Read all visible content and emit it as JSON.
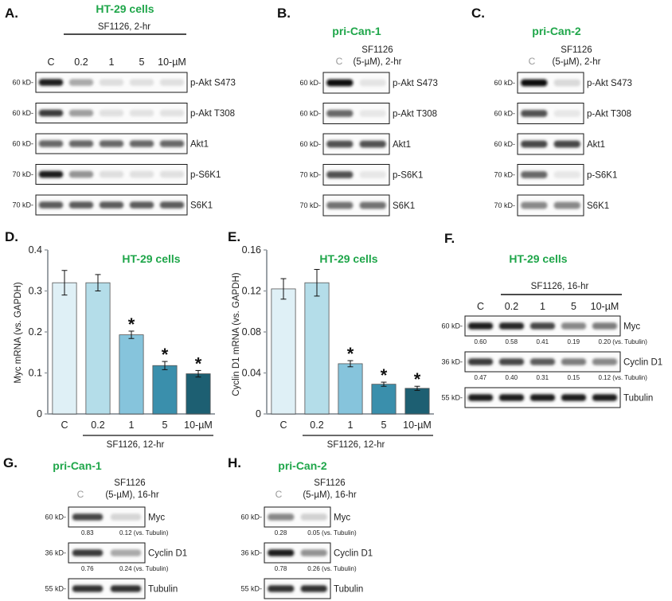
{
  "panels": {
    "A": {
      "letter": "A.",
      "title": "HT-29 cells",
      "treatment": "SF1126, 2-hr",
      "lanes": [
        "C",
        "0.2",
        "1",
        "5",
        "10-µM"
      ],
      "blots": [
        {
          "kd": "60 kD-",
          "protein": "p-Akt S473",
          "intensity": [
            0.95,
            0.3,
            0.06,
            0.05,
            0.05
          ]
        },
        {
          "kd": "60 kD-",
          "protein": "p-Akt T308",
          "intensity": [
            0.8,
            0.35,
            0.05,
            0.04,
            0.04
          ]
        },
        {
          "kd": "60 kD-",
          "protein": "Akt1",
          "intensity": [
            0.6,
            0.6,
            0.6,
            0.6,
            0.6
          ]
        },
        {
          "kd": "70 kD-",
          "protein": "p-S6K1",
          "intensity": [
            0.95,
            0.4,
            0.06,
            0.05,
            0.05
          ]
        },
        {
          "kd": "70 kD-",
          "protein": "S6K1",
          "intensity": [
            0.65,
            0.65,
            0.65,
            0.65,
            0.65
          ]
        }
      ]
    },
    "B": {
      "letter": "B.",
      "title": "pri-Can-1",
      "treatment_line1": "SF1126",
      "treatment_line2": "(5-µM), 2-hr",
      "lanes": [
        "C"
      ],
      "blots": [
        {
          "kd": "60 kD-",
          "protein": "p-Akt S473",
          "intensity": [
            1.0,
            0.03
          ]
        },
        {
          "kd": "60 kD-",
          "protein": "p-Akt T308",
          "intensity": [
            0.6,
            0.02
          ]
        },
        {
          "kd": "60 kD-",
          "protein": "Akt1",
          "intensity": [
            0.7,
            0.7
          ]
        },
        {
          "kd": "70 kD-",
          "protein": "p-S6K1",
          "intensity": [
            0.7,
            0.02
          ]
        },
        {
          "kd": "70 kD-",
          "protein": "S6K1",
          "intensity": [
            0.55,
            0.55
          ]
        }
      ]
    },
    "C": {
      "letter": "C.",
      "title": "pri-Can-2",
      "treatment_line1": "SF1126",
      "treatment_line2": "(5-µM), 2-hr",
      "lanes": [
        "C"
      ],
      "blots": [
        {
          "kd": "60 kD-",
          "protein": "p-Akt S473",
          "intensity": [
            1.0,
            0.08
          ]
        },
        {
          "kd": "60 kD-",
          "protein": "p-Akt T308",
          "intensity": [
            0.7,
            0.02
          ]
        },
        {
          "kd": "60 kD-",
          "protein": "Akt1",
          "intensity": [
            0.75,
            0.75
          ]
        },
        {
          "kd": "70 kD-",
          "protein": "p-S6K1",
          "intensity": [
            0.6,
            0.02
          ]
        },
        {
          "kd": "70 kD-",
          "protein": "S6K1",
          "intensity": [
            0.45,
            0.45
          ]
        }
      ]
    },
    "F": {
      "letter": "F.",
      "title": "HT-29 cells",
      "treatment": "SF1126, 16-hr",
      "lanes": [
        "C",
        "0.2",
        "1",
        "5",
        "10-µM"
      ],
      "blots": [
        {
          "kd": "60 kD-",
          "protein": "Myc",
          "intensity": [
            0.95,
            0.9,
            0.75,
            0.45,
            0.5
          ],
          "values": [
            "0.60",
            "0.58",
            "0.41",
            "0.19",
            "0.20 (vs. Tubulin)"
          ]
        },
        {
          "kd": "36 kD-",
          "protein": "Cyclin D1",
          "intensity": [
            0.8,
            0.75,
            0.65,
            0.5,
            0.45
          ],
          "values": [
            "0.47",
            "0.40",
            "0.31",
            "0.15",
            "0.12 (vs. Tubulin)"
          ]
        },
        {
          "kd": "55 kD-",
          "protein": "Tubulin",
          "intensity": [
            0.95,
            0.95,
            0.95,
            0.95,
            0.95
          ]
        }
      ]
    },
    "G": {
      "letter": "G.",
      "title": "pri-Can-1",
      "treatment_line1": "SF1126",
      "treatment_line2": "(5-µM), 16-hr",
      "lanes": [
        "C"
      ],
      "blots": [
        {
          "kd": "60 kD-",
          "protein": "Myc",
          "intensity": [
            0.75,
            0.1
          ],
          "values": [
            "0.83",
            "0.12 (vs. Tubulin)"
          ]
        },
        {
          "kd": "36 kD-",
          "protein": "Cyclin D1",
          "intensity": [
            0.8,
            0.3
          ],
          "values": [
            "0.76",
            "0.24 (vs. Tubulin)"
          ]
        },
        {
          "kd": "55 kD-",
          "protein": "Tubulin",
          "intensity": [
            0.85,
            0.85
          ]
        }
      ]
    },
    "H": {
      "letter": "H.",
      "title": "pri-Can-2",
      "treatment_line1": "SF1126",
      "treatment_line2": "(5-µM), 16-hr",
      "lanes": [
        "C"
      ],
      "blots": [
        {
          "kd": "60 kD-",
          "protein": "Myc",
          "intensity": [
            0.45,
            0.12
          ],
          "values": [
            "0.28",
            "0.05 (vs. Tubulin)"
          ]
        },
        {
          "kd": "36 kD-",
          "protein": "Cyclin D1",
          "intensity": [
            0.95,
            0.4
          ],
          "values": [
            "0.78",
            "0.26 (vs. Tubulin)"
          ]
        },
        {
          "kd": "55 kD-",
          "protein": "Tubulin",
          "intensity": [
            0.85,
            0.85
          ]
        }
      ]
    }
  },
  "colors": {
    "title_green": "#1fa64a",
    "bars": [
      "#dff0f6",
      "#b4dde9",
      "#86c4dc",
      "#3a8fac",
      "#1d5f72"
    ],
    "error": "#111111"
  },
  "chart_data": [
    {
      "type": "bar",
      "panel": "D.",
      "title": "HT-29 cells",
      "ylabel": "Myc mRNA (vs. GAPDH)",
      "xlabel": "SF1126, 12-hr",
      "categories": [
        "C",
        "0.2",
        "1",
        "5",
        "10-µM"
      ],
      "values": [
        0.32,
        0.32,
        0.193,
        0.118,
        0.098
      ],
      "errors": [
        0.03,
        0.02,
        0.009,
        0.01,
        0.008
      ],
      "significance": [
        "",
        "",
        "*",
        "*",
        "*"
      ],
      "ylim": [
        0,
        0.4
      ],
      "yticks": [
        "0",
        "0.1",
        "0.2",
        "0.3",
        "0.4"
      ]
    },
    {
      "type": "bar",
      "panel": "E.",
      "title": "HT-29 cells",
      "ylabel": "Cyclin D1 mRNA (vs. GAPDH)",
      "xlabel": "SF1126, 12-hr",
      "categories": [
        "C",
        "0.2",
        "1",
        "5",
        "10-µM"
      ],
      "values": [
        0.122,
        0.128,
        0.049,
        0.029,
        0.025
      ],
      "errors": [
        0.01,
        0.013,
        0.003,
        0.002,
        0.002
      ],
      "significance": [
        "",
        "",
        "*",
        "*",
        "*"
      ],
      "ylim": [
        0,
        0.16
      ],
      "yticks": [
        "0",
        "0.04",
        "0.08",
        "0.12",
        "0.16"
      ]
    }
  ]
}
